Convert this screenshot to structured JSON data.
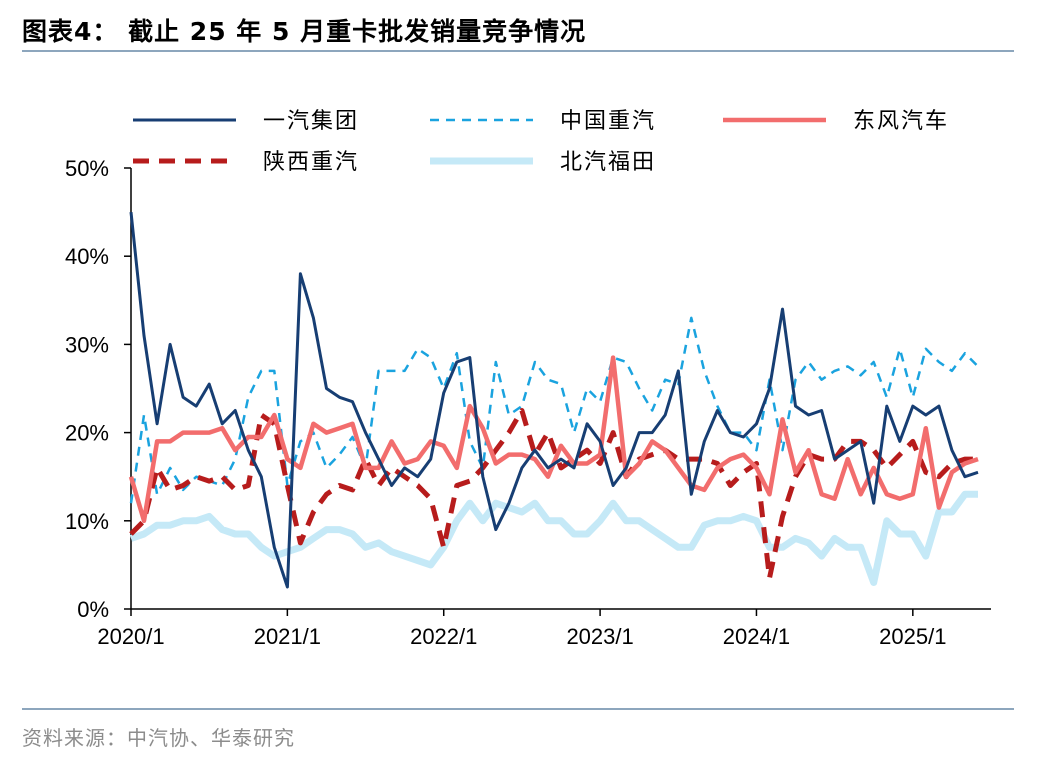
{
  "title": "图表4：  截止 25 年 5 月重卡批发销量竞争情况",
  "source": "资料来源：中汽协、华泰研究",
  "chart_data": {
    "type": "line",
    "title": "",
    "xlabel": "",
    "ylabel": "",
    "ylim": [
      0,
      50
    ],
    "yticks": [
      "0%",
      "10%",
      "20%",
      "30%",
      "40%",
      "50%"
    ],
    "xticks": [
      "2020/1",
      "2021/1",
      "2022/1",
      "2023/1",
      "2024/1",
      "2025/1"
    ],
    "x_start": "2020/1",
    "x_end": "2025/5",
    "grid": false,
    "legend_position": "top",
    "series": [
      {
        "name": "一汽集团",
        "color": "#173e73",
        "style": "solid",
        "values": [
          45,
          31,
          21,
          30,
          24,
          23,
          25.5,
          21,
          22.5,
          18,
          15,
          7,
          2.5,
          38,
          33,
          25,
          24,
          23.5,
          20,
          17,
          14,
          16,
          15,
          17,
          24.5,
          28,
          28.5,
          15,
          9,
          12,
          16,
          18,
          16,
          17,
          16,
          21,
          19,
          14,
          16,
          20,
          20,
          22,
          27,
          13,
          19,
          22.5,
          20,
          19.5,
          21,
          25,
          34,
          23,
          22,
          22.5,
          17,
          18,
          19,
          12,
          23,
          19,
          23,
          22,
          23,
          18,
          15,
          15.5
        ]
      },
      {
        "name": "中国重汽",
        "color": "#1aa3df",
        "style": "dashed",
        "values": [
          12,
          22,
          13,
          16,
          13.5,
          15,
          14.5,
          14,
          17,
          24,
          27,
          27,
          14,
          19,
          20,
          16,
          17.5,
          19.5,
          16,
          27,
          27,
          27,
          29.5,
          28.5,
          25,
          29,
          19,
          16,
          28,
          22,
          23,
          28,
          26,
          25.5,
          20,
          25,
          23.5,
          28.5,
          28,
          25,
          22.5,
          26,
          25.5,
          33,
          27,
          23,
          20,
          20,
          18,
          26,
          18,
          26,
          28,
          26,
          27,
          27.5,
          26.5,
          28,
          24,
          29.5,
          24,
          29.5,
          28,
          27,
          29,
          27.5
        ]
      },
      {
        "name": "东风汽车",
        "color": "#f26d6d",
        "style": "solid",
        "values": [
          15,
          10,
          19,
          19,
          20,
          20,
          20,
          20.5,
          18,
          19.5,
          19.5,
          22,
          17,
          16,
          21,
          20,
          20.5,
          21,
          16,
          16,
          19,
          16.5,
          17,
          19,
          18.5,
          16,
          23,
          20.5,
          16.5,
          17.5,
          17.5,
          17,
          15,
          18.5,
          16.5,
          16.5,
          17.5,
          28.5,
          15,
          16.5,
          19,
          18,
          16,
          14,
          13.5,
          16,
          17,
          17.5,
          16,
          13,
          21.5,
          15.5,
          18,
          13,
          12.5,
          17,
          13,
          16,
          13,
          12.5,
          13,
          20.5,
          11.5,
          15.5,
          16.5,
          17
        ]
      },
      {
        "name": "陕西重汽",
        "color": "#b71c1c",
        "style": "dashed",
        "values": [
          8.5,
          10,
          16,
          13.5,
          14,
          15,
          14.5,
          15,
          13.5,
          14,
          22,
          21,
          14,
          7.5,
          11,
          13,
          14,
          13.5,
          17,
          14,
          16,
          15,
          14,
          12.5,
          7,
          14,
          14.5,
          16,
          18,
          20,
          22.5,
          17.5,
          20,
          16,
          17,
          18,
          16.5,
          20,
          15,
          17,
          17.5,
          18,
          17,
          17,
          17,
          16.5,
          14,
          15.5,
          16.5,
          3.5,
          10.5,
          15,
          17.5,
          17,
          17,
          19,
          19,
          18,
          16,
          17.5,
          19,
          15.5,
          15,
          16.5,
          17,
          17
        ]
      },
      {
        "name": "北汽福田",
        "color": "#c5e9f7",
        "style": "solid",
        "values": [
          8,
          8.5,
          9.5,
          9.5,
          10,
          10,
          10.5,
          9,
          8.5,
          8.5,
          7,
          6,
          6.5,
          7,
          8,
          9,
          9,
          8.5,
          7,
          7.5,
          6.5,
          6,
          5.5,
          5,
          7,
          10,
          12,
          10,
          12,
          11.5,
          11,
          12,
          10,
          10,
          8.5,
          8.5,
          10,
          12,
          10,
          10,
          9,
          8,
          7,
          7,
          9.5,
          10,
          10,
          10.5,
          10,
          7,
          7,
          8,
          7.5,
          6,
          8,
          7,
          7,
          3,
          10,
          8.5,
          8.5,
          6,
          11,
          11,
          13,
          13
        ]
      }
    ]
  }
}
